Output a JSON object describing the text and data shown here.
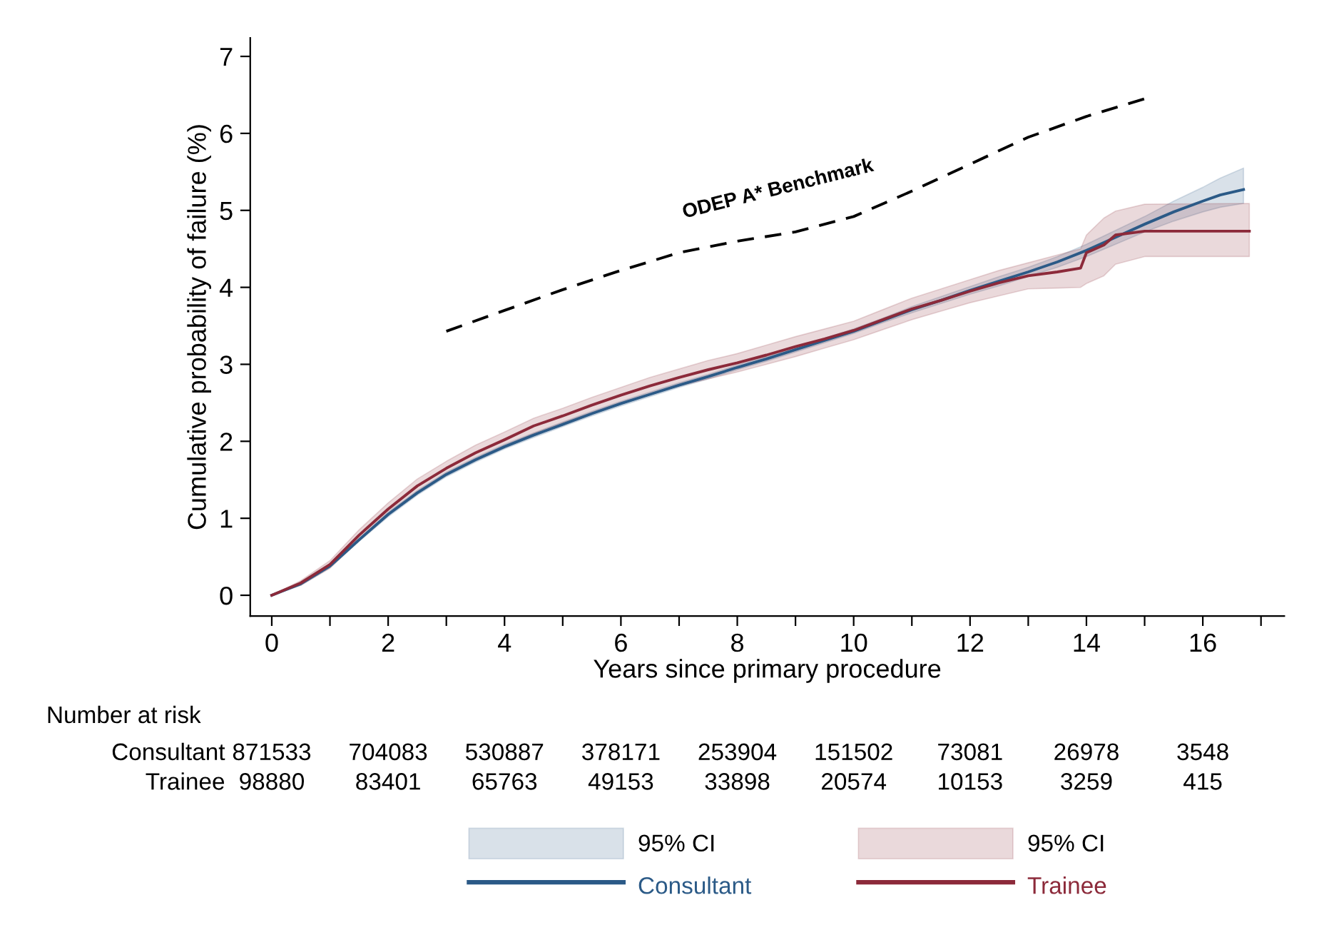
{
  "chart_data": {
    "type": "line",
    "xlabel": "Years since primary procedure",
    "ylabel": "Cumulative probability of failure (%)",
    "xlim": [
      -0.37,
      17.4
    ],
    "ylim": [
      -0.27,
      7.24
    ],
    "xticks": [
      0,
      {
        "value": 1,
        "label": null
      },
      2,
      {
        "value": 3,
        "label": null
      },
      4,
      {
        "value": 5,
        "label": null
      },
      6,
      {
        "value": 7,
        "label": null
      },
      8,
      {
        "value": 9,
        "label": null
      },
      10,
      {
        "value": 11,
        "label": null
      },
      12,
      {
        "value": 13,
        "label": null
      },
      14,
      {
        "value": 15,
        "label": null
      },
      16,
      {
        "value": 17,
        "label": null
      }
    ],
    "yticks": [
      0,
      1,
      2,
      3,
      4,
      5,
      6,
      7
    ],
    "legend": "bottom",
    "series": [
      {
        "type": "line",
        "name": "Consultant",
        "color": "#2b5a87",
        "x": [
          0,
          0.5,
          1,
          1.5,
          2,
          2.5,
          3,
          3.5,
          4,
          4.5,
          5,
          5.5,
          6,
          6.5,
          7,
          7.5,
          8,
          8.5,
          9,
          9.5,
          10,
          10.5,
          11,
          11.5,
          12,
          12.5,
          13,
          13.5,
          14,
          14.5,
          15,
          15.5,
          16,
          16.3,
          16.7
        ],
        "values": [
          0,
          0.15,
          0.38,
          0.72,
          1.05,
          1.33,
          1.57,
          1.76,
          1.93,
          2.08,
          2.22,
          2.36,
          2.49,
          2.61,
          2.73,
          2.84,
          2.96,
          3.07,
          3.19,
          3.31,
          3.43,
          3.57,
          3.71,
          3.83,
          3.96,
          4.08,
          4.2,
          4.33,
          4.48,
          4.65,
          4.82,
          4.98,
          5.12,
          5.2,
          5.27
        ],
        "lower": [
          0,
          0.13,
          0.36,
          0.7,
          1.02,
          1.3,
          1.54,
          1.73,
          1.9,
          2.05,
          2.19,
          2.33,
          2.46,
          2.58,
          2.7,
          2.81,
          2.93,
          3.04,
          3.16,
          3.28,
          3.4,
          3.54,
          3.67,
          3.79,
          3.91,
          4.02,
          4.14,
          4.26,
          4.4,
          4.56,
          4.72,
          4.86,
          4.98,
          5.04,
          5.09
        ],
        "upper": [
          0,
          0.17,
          0.4,
          0.74,
          1.08,
          1.36,
          1.6,
          1.79,
          1.96,
          2.11,
          2.25,
          2.39,
          2.52,
          2.64,
          2.76,
          2.87,
          2.99,
          3.1,
          3.22,
          3.34,
          3.46,
          3.6,
          3.75,
          3.88,
          4.01,
          4.14,
          4.26,
          4.4,
          4.56,
          4.74,
          4.92,
          5.12,
          5.3,
          5.42,
          5.55
        ]
      },
      {
        "type": "line",
        "name": "Trainee",
        "color": "#8c2a3a",
        "x": [
          0,
          0.5,
          1,
          1.5,
          2,
          2.5,
          3,
          3.5,
          4,
          4.5,
          5,
          5.5,
          6,
          6.5,
          7,
          7.5,
          8,
          8.5,
          9,
          9.5,
          10,
          10.5,
          11,
          11.5,
          12,
          12.5,
          13,
          13.5,
          13.9,
          14,
          14.3,
          14.5,
          15,
          16.8
        ],
        "values": [
          0,
          0.16,
          0.4,
          0.78,
          1.12,
          1.42,
          1.65,
          1.85,
          2.02,
          2.2,
          2.33,
          2.47,
          2.6,
          2.72,
          2.83,
          2.93,
          3.02,
          3.12,
          3.23,
          3.33,
          3.44,
          3.58,
          3.72,
          3.83,
          3.95,
          4.06,
          4.15,
          4.2,
          4.25,
          4.45,
          4.55,
          4.68,
          4.73,
          4.73
        ],
        "lower": [
          0,
          0.13,
          0.35,
          0.71,
          1.04,
          1.33,
          1.56,
          1.75,
          1.93,
          2.1,
          2.24,
          2.37,
          2.5,
          2.61,
          2.72,
          2.81,
          2.9,
          3.0,
          3.1,
          3.21,
          3.32,
          3.45,
          3.58,
          3.69,
          3.8,
          3.89,
          3.98,
          3.99,
          4.0,
          4.05,
          4.15,
          4.3,
          4.4,
          4.4
        ],
        "upper": [
          0,
          0.19,
          0.45,
          0.85,
          1.2,
          1.51,
          1.74,
          1.95,
          2.12,
          2.3,
          2.43,
          2.57,
          2.7,
          2.83,
          2.94,
          3.05,
          3.14,
          3.25,
          3.36,
          3.46,
          3.56,
          3.71,
          3.86,
          3.98,
          4.1,
          4.22,
          4.32,
          4.42,
          4.5,
          4.68,
          4.9,
          4.99,
          5.08,
          5.09
        ]
      },
      {
        "type": "line",
        "name": "ODEP A* Benchmark",
        "color": "#000000",
        "line_style": "dashed",
        "x": [
          3,
          4,
          5,
          6,
          7,
          8,
          9,
          10,
          11,
          12,
          13,
          14,
          15
        ],
        "values": [
          3.43,
          3.7,
          3.97,
          4.22,
          4.45,
          4.6,
          4.72,
          4.92,
          5.25,
          5.6,
          5.95,
          6.22,
          6.45
        ]
      }
    ],
    "annotations": [
      "Number at risk",
      "Consultant",
      "871533",
      "704083",
      "530887",
      "378171",
      "253904",
      "151502",
      "73081",
      "26978",
      "3548",
      "Trainee",
      "98880",
      "83401",
      "65763",
      "49153",
      "33898",
      "20574",
      "10153",
      "3259",
      "415",
      "95% CI",
      "95% CI"
    ]
  }
}
